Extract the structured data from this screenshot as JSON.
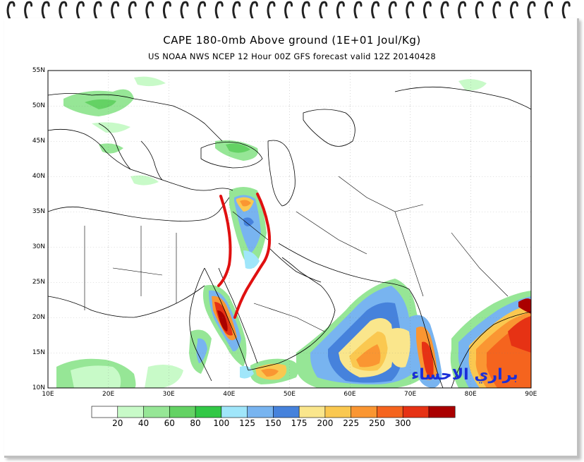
{
  "title": "CAPE 180-0mb Above ground (1E+01 Joul/Kg)",
  "subtitle": "US NOAA NWS NCEP 12 Hour 00Z GFS forecast valid 12Z 20140428",
  "lat_labels": [
    "55N",
    "50N",
    "45N",
    "40N",
    "35N",
    "30N",
    "25N",
    "20N",
    "15N",
    "10N"
  ],
  "lon_labels": [
    "10E",
    "20E",
    "30E",
    "40E",
    "50E",
    "60E",
    "70E",
    "80E",
    "90E"
  ],
  "colorbar": {
    "values": [
      "20",
      "40",
      "60",
      "80",
      "100",
      "125",
      "150",
      "175",
      "200",
      "225",
      "250",
      "300"
    ],
    "colors": [
      "#ffffff",
      "#c8fac8",
      "#96e696",
      "#64d264",
      "#32c846",
      "#a0e6fa",
      "#78b4f0",
      "#4682dc",
      "#fae68c",
      "#fac850",
      "#fa9632",
      "#f5641e",
      "#e63214",
      "#aa0000"
    ]
  },
  "watermark": "براري الاحساء",
  "annotation_color": "#e01010"
}
